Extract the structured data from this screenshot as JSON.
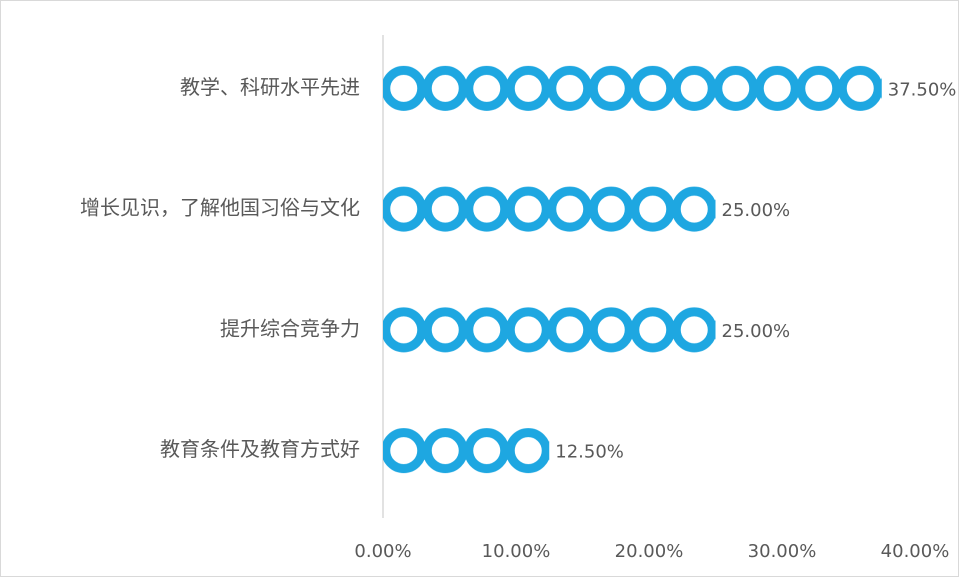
{
  "chart_data": {
    "type": "bar",
    "orientation": "horizontal",
    "categories": [
      "教学、科研水平先进",
      "增长见识，了解他国习俗与文化",
      "提升综合竞争力",
      "教育条件及教育方式好"
    ],
    "values": [
      37.5,
      25,
      25,
      12.5
    ],
    "value_labels": [
      "37.50%",
      "25.00%",
      "25.00%",
      "12.50%"
    ],
    "color": "#1ea7e1",
    "xlim": [
      0,
      40
    ],
    "xticks": [
      {
        "value": 0,
        "label": "0.00%"
      },
      {
        "value": 10,
        "label": "10.00%"
      },
      {
        "value": 20,
        "label": "20.00%"
      },
      {
        "value": 30,
        "label": "30.00%"
      },
      {
        "value": 40,
        "label": "40.00%"
      }
    ],
    "grid": false
  }
}
